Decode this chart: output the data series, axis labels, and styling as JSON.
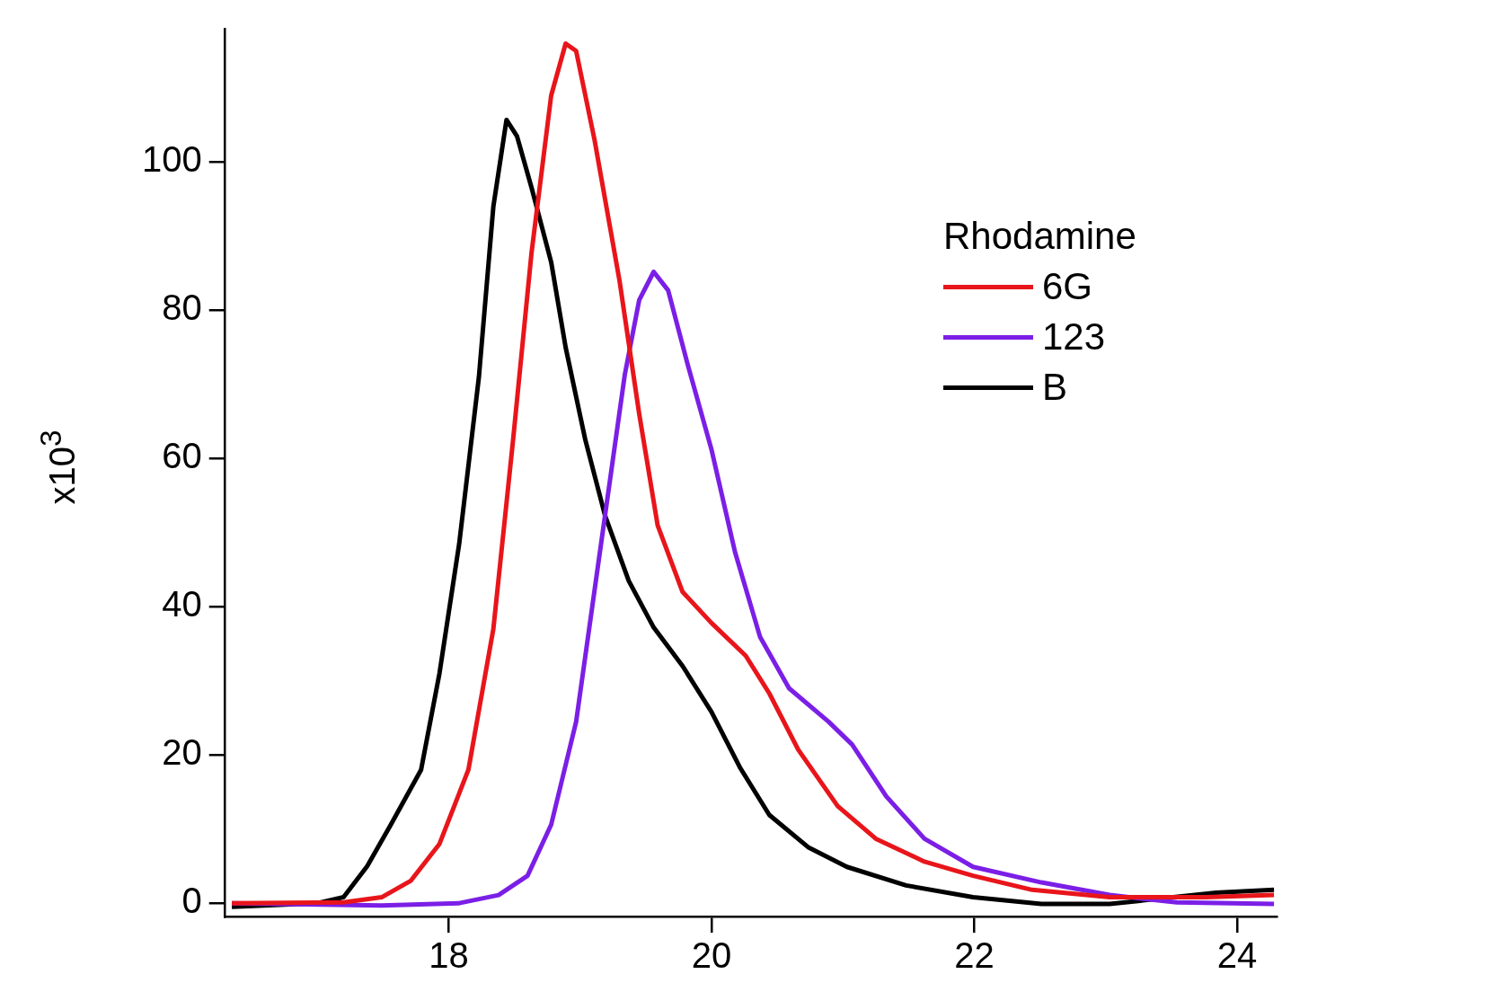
{
  "chart_data": {
    "type": "line",
    "ylabel": "x10$^{3}$",
    "legend_title": "Rhodamine",
    "legend": "top right",
    "grid": false,
    "marker": "none",
    "line_style": "solid",
    "xlim": [
      16.3,
      24.3
    ],
    "xticks": [
      18,
      20,
      22,
      24
    ],
    "ylim": [
      -1.8,
      118
    ],
    "yticks": [
      0,
      20,
      40,
      60,
      80,
      100
    ],
    "series": [
      {
        "name": "6G",
        "color": "#e8151b",
        "x": [
          16.35,
          17.2,
          17.49,
          17.71,
          17.93,
          18.15,
          18.34,
          18.49,
          18.63,
          18.78,
          18.89,
          18.97,
          19.11,
          19.3,
          19.45,
          19.59,
          19.78,
          20.0,
          20.26,
          20.44,
          20.66,
          20.96,
          21.25,
          21.62,
          21.99,
          22.44,
          23.03,
          23.76,
          24.28
        ],
        "values": [
          0,
          0.1,
          0.8,
          3,
          8,
          18,
          37,
          62.5,
          87.7,
          109,
          116,
          115,
          103,
          84,
          66,
          51,
          42,
          37.8,
          33.4,
          28.3,
          20.7,
          13.1,
          8.7,
          5.6,
          3.7,
          1.8,
          0.8,
          0.8,
          1.1
        ]
      },
      {
        "name": "123",
        "color": "#7b1fe6",
        "x": [
          16.35,
          17.49,
          18.08,
          18.38,
          18.6,
          18.78,
          18.97,
          19.15,
          19.34,
          19.45,
          19.56,
          19.67,
          19.82,
          20.0,
          20.18,
          20.37,
          20.59,
          20.89,
          21.07,
          21.33,
          21.62,
          21.99,
          22.51,
          23.03,
          23.54,
          24.28
        ],
        "values": [
          0,
          -0.3,
          0,
          1.1,
          3.7,
          10.6,
          24.5,
          47.3,
          71.3,
          81.4,
          85.2,
          82.7,
          72.6,
          61.2,
          47.3,
          35.9,
          29,
          24.5,
          21.4,
          14.4,
          8.7,
          4.9,
          2.8,
          1.1,
          0.1,
          -0.1
        ]
      },
      {
        "name": "B",
        "color": "#000000",
        "x": [
          16.35,
          17.0,
          17.2,
          17.38,
          17.56,
          17.79,
          17.93,
          18.08,
          18.23,
          18.34,
          18.44,
          18.52,
          18.63,
          18.78,
          18.89,
          19.04,
          19.19,
          19.37,
          19.56,
          19.78,
          20.0,
          20.22,
          20.44,
          20.74,
          21.03,
          21.48,
          21.99,
          22.51,
          23.03,
          23.84,
          24.28
        ],
        "values": [
          -0.5,
          0,
          0.8,
          5,
          10.6,
          18,
          31,
          48.5,
          71,
          94,
          105.7,
          103.5,
          96.6,
          86.5,
          75,
          62.5,
          52.3,
          43.5,
          37.2,
          32,
          25.8,
          18.2,
          11.9,
          7.5,
          4.9,
          2.4,
          0.8,
          -0.1,
          -0.1,
          1.4,
          1.8
        ]
      }
    ]
  }
}
